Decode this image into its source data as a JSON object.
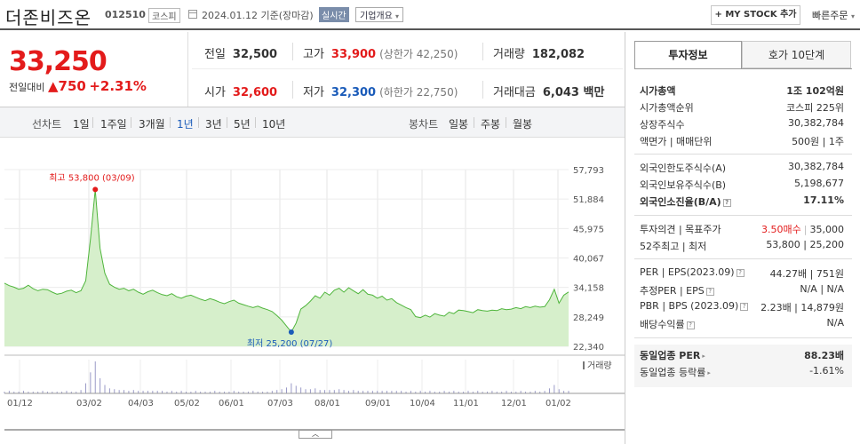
{
  "header": {
    "name": "더존비즈온",
    "code": "012510",
    "market": "코스피",
    "date": "2024.01.12 기준(장마감)",
    "realtime": "실시간",
    "overview": "기업개요",
    "mystock": "+ MY STOCK 추가",
    "quick_order": "빠른주문"
  },
  "summary": {
    "price": "33,250",
    "change_label": "전일대비",
    "change_value": "▲750",
    "change_pct": "+2.31%"
  },
  "stats": {
    "prev_label": "전일",
    "prev_value": "32,500",
    "high_label": "고가",
    "high_value": "33,900",
    "high_sub": "(상한가 42,250)",
    "volume_label": "거래량",
    "volume_value": "182,082",
    "open_label": "시가",
    "open_value": "32,600",
    "low_label": "저가",
    "low_value": "32,300",
    "low_sub": "(하한가 22,750)",
    "amount_label": "거래대금",
    "amount_value": "6,043 백만"
  },
  "periods": {
    "line_label": "선차트",
    "items": [
      "1일",
      "1주일",
      "3개월",
      "1년",
      "3년",
      "5년",
      "10년"
    ],
    "active": "1년",
    "candle_label": "봉차트",
    "candle_items": [
      "일봉",
      "주봉",
      "월봉"
    ]
  },
  "chart_data": {
    "type": "area",
    "x_ticks": [
      "01/12",
      "03/02",
      "04/03",
      "05/02",
      "06/01",
      "07/03",
      "08/01",
      "09/01",
      "10/04",
      "11/01",
      "12/01",
      "01/02"
    ],
    "y_ticks": [
      57793,
      51884,
      45975,
      40067,
      34158,
      28249,
      22340
    ],
    "ylim": [
      22340,
      57793
    ],
    "high_annotation": "최고 53,800 (03/09)",
    "low_annotation": "최저 25,200 (07/27)",
    "volume_label": "거래량",
    "series": [
      {
        "values": [
          35000,
          34500,
          34200,
          33800,
          34000,
          34600,
          33900,
          33500,
          33800,
          33700,
          33200,
          32800,
          33000,
          33400,
          33600,
          33100,
          33500,
          35500,
          44000,
          53800,
          42000,
          37000,
          34800,
          34200,
          33800,
          34000,
          33500,
          33800,
          33200,
          32800,
          33300,
          33600,
          33100,
          32700,
          32500,
          32900,
          32300,
          32000,
          32400,
          32600,
          32200,
          31800,
          31500,
          31900,
          31600,
          31200,
          30900,
          31300,
          31600,
          31000,
          30700,
          30400,
          30100,
          30400,
          30000,
          29700,
          29300,
          28500,
          27600,
          26400,
          25200,
          27000,
          29800,
          30500,
          31400,
          32500,
          32000,
          33200,
          32600,
          33600,
          34000,
          33200,
          34100,
          33500,
          32900,
          33700,
          32800,
          32600,
          32000,
          32400,
          31600,
          31900,
          31100,
          30600,
          30100,
          29700,
          28300,
          28100,
          28600,
          28200,
          28900,
          28600,
          28400,
          29200,
          28900,
          29600,
          29500,
          29300,
          29100,
          29700,
          29500,
          29400,
          29600,
          29500,
          29900,
          29700,
          29800,
          30100,
          29900,
          30300,
          30100,
          30400,
          30200,
          30300,
          31700,
          33800,
          31000,
          32600,
          33250
        ]
      }
    ],
    "volume": [
      2,
      3,
      2,
      2,
      3,
      2,
      2,
      2,
      3,
      2,
      2,
      2,
      2,
      3,
      2,
      2,
      4,
      12,
      25,
      38,
      18,
      10,
      6,
      5,
      4,
      4,
      3,
      4,
      3,
      3,
      3,
      3,
      3,
      3,
      2,
      3,
      2,
      3,
      2,
      2,
      3,
      2,
      2,
      2,
      3,
      2,
      2,
      2,
      3,
      2,
      2,
      2,
      3,
      2,
      2,
      2,
      3,
      4,
      5,
      7,
      12,
      9,
      7,
      5,
      5,
      6,
      4,
      4,
      4,
      4,
      5,
      4,
      3,
      4,
      3,
      3,
      3,
      3,
      3,
      3,
      3,
      3,
      3,
      3,
      2,
      3,
      2,
      3,
      2,
      3,
      2,
      2,
      3,
      2,
      3,
      2,
      2,
      3,
      2,
      3,
      2,
      2,
      3,
      2,
      2,
      3,
      2,
      2,
      3,
      2,
      2,
      3,
      2,
      3,
      6,
      10,
      5,
      3,
      3
    ]
  },
  "info": {
    "tab_active": "투자정보",
    "tab_other": "호가 10단계",
    "rows": [
      {
        "k": "시가총액",
        "v": "1조 102억원",
        "bold": true
      },
      {
        "k": "시가총액순위",
        "v": "코스피 225위"
      },
      {
        "k": "상장주식수",
        "v": "30,382,784"
      },
      {
        "k": "액면가 | 매매단위",
        "v": "500원 | 1주"
      },
      {
        "k": "외국인한도주식수(A)",
        "v": "30,382,784"
      },
      {
        "k": "외국인보유주식수(B)",
        "v": "5,198,677"
      },
      {
        "k": "외국인소진율(B/A)",
        "v": "17.11%",
        "bold": true
      },
      {
        "k": "투자의견 | 목표주가",
        "v_red": "3.50매수",
        "v": "35,000"
      },
      {
        "k": "52주최고 | 최저",
        "v": "53,800 | 25,200"
      },
      {
        "k": "PER | EPS(2023.09)",
        "v": "44.27배 | 751원"
      },
      {
        "k": "추정PER | EPS",
        "v": "N/A | N/A"
      },
      {
        "k": "PBR | BPS (2023.09)",
        "v": "2.23배 | 14,879원"
      },
      {
        "k": "배당수익률",
        "v": "N/A"
      },
      {
        "k": "동일업종 PER",
        "v": "88.23배",
        "bold": true
      },
      {
        "k": "동일업종 등락률",
        "v": "-1.61%",
        "blue": true
      }
    ]
  }
}
